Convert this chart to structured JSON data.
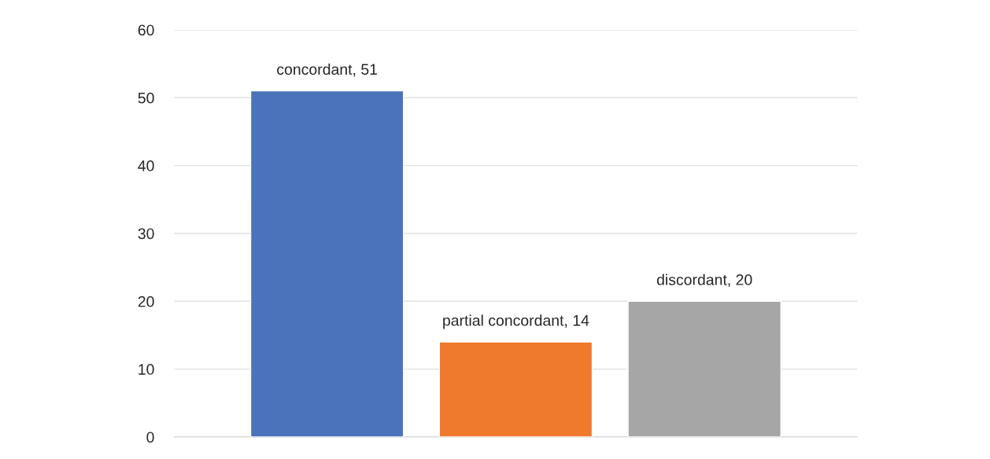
{
  "chart_data": {
    "type": "bar",
    "categories": [
      null,
      null,
      null
    ],
    "values": [
      51,
      14,
      20
    ],
    "colors": [
      "#4a73bc",
      "#ef7a2e",
      "#a6a6a6"
    ],
    "value_labels": [
      "concordant, 51",
      "partial concordant, 14",
      "discordant, 20"
    ],
    "ylim": [
      0,
      60
    ],
    "yticks": [
      0,
      10,
      20,
      30,
      40,
      50,
      60
    ],
    "grid": "y",
    "tick_labels": "y"
  }
}
